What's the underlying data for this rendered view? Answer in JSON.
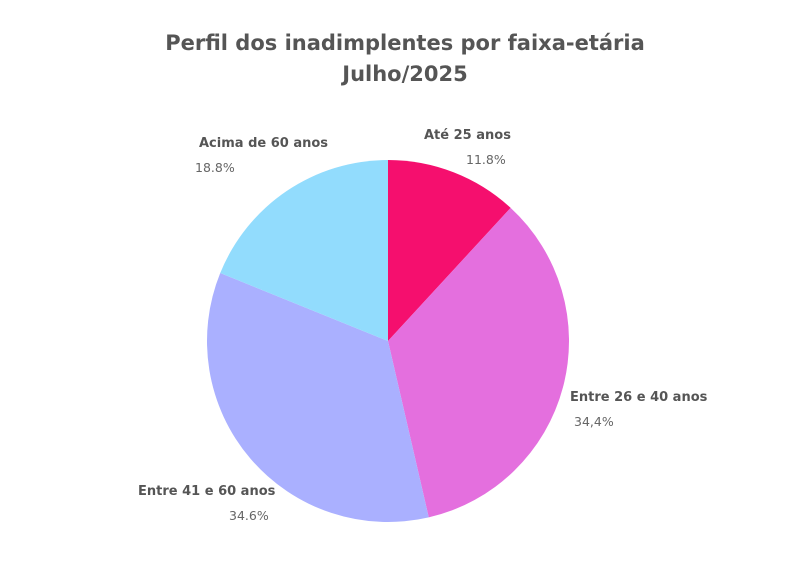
{
  "chart_data": {
    "type": "pie",
    "title": "Perfil dos inadimplentes por faixa-etária",
    "subtitle": "Julho/2025",
    "slices": [
      {
        "label": "Até 25 anos",
        "value": 11.8,
        "value_label": "11.8%",
        "color": "#f50f6e"
      },
      {
        "label": "Entre 26 e 40 anos",
        "value": 34.4,
        "value_label": "34,4%",
        "color": "#e46fde"
      },
      {
        "label": "Entre 41 e 60 anos",
        "value": 34.6,
        "value_label": "34.6%",
        "color": "#aab0ff"
      },
      {
        "label": "Acima de 60 anos",
        "value": 18.8,
        "value_label": "18.8%",
        "color": "#92dcfd"
      }
    ],
    "start": "12 o'clock",
    "direction": "clockwise",
    "legend": "none"
  }
}
